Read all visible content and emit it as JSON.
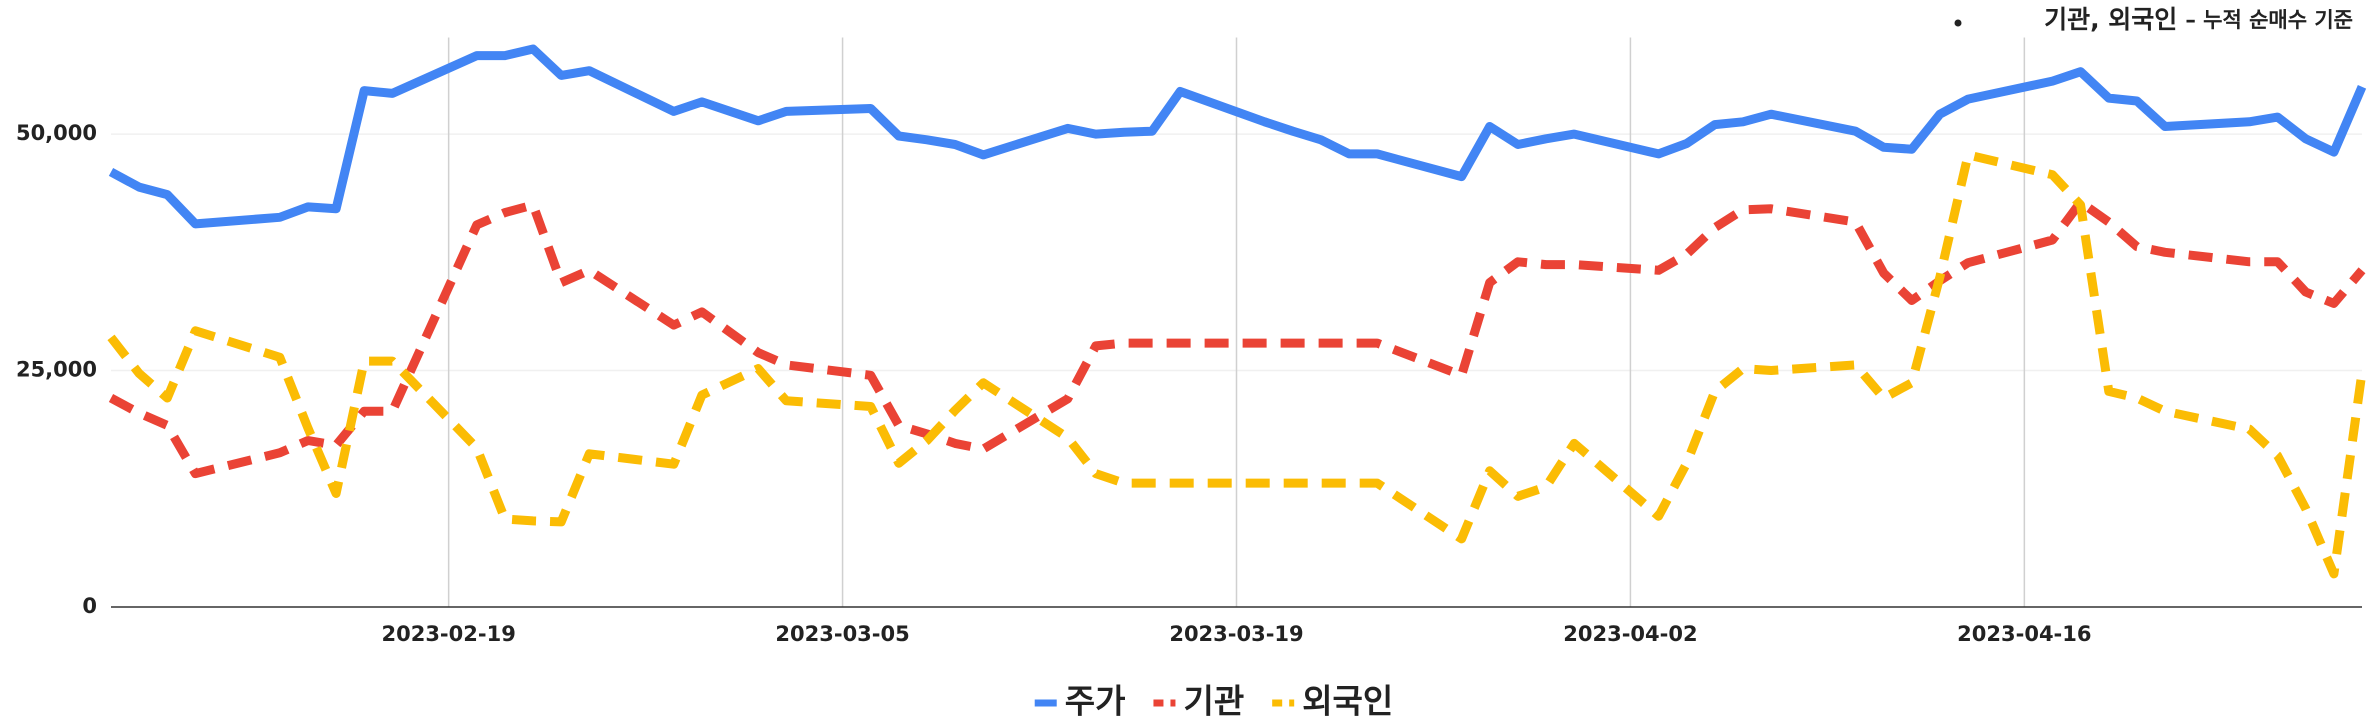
{
  "chart_data": {
    "type": "line",
    "title": "기관, 외국인",
    "subtitle": "– 누적 순매수 기준",
    "x": [
      "2023-02-07",
      "2023-02-08",
      "2023-02-09",
      "2023-02-10",
      "2023-02-13",
      "2023-02-14",
      "2023-02-15",
      "2023-02-16",
      "2023-02-17",
      "2023-02-20",
      "2023-02-21",
      "2023-02-22",
      "2023-02-23",
      "2023-02-24",
      "2023-02-27",
      "2023-02-28",
      "2023-03-02",
      "2023-03-03",
      "2023-03-06",
      "2023-03-07",
      "2023-03-08",
      "2023-03-09",
      "2023-03-10",
      "2023-03-13",
      "2023-03-14",
      "2023-03-15",
      "2023-03-16",
      "2023-03-17",
      "2023-03-20",
      "2023-03-21",
      "2023-03-22",
      "2023-03-23",
      "2023-03-24",
      "2023-03-27",
      "2023-03-28",
      "2023-03-29",
      "2023-03-30",
      "2023-03-31",
      "2023-04-03",
      "2023-04-04",
      "2023-04-05",
      "2023-04-06",
      "2023-04-07",
      "2023-04-10",
      "2023-04-11",
      "2023-04-12",
      "2023-04-13",
      "2023-04-14",
      "2023-04-17",
      "2023-04-18",
      "2023-04-19",
      "2023-04-20",
      "2023-04-21",
      "2023-04-24",
      "2023-04-25",
      "2023-04-26",
      "2023-04-27",
      "2023-04-28"
    ],
    "series": [
      {
        "name": "주가",
        "color": "#4285f4",
        "dash": false,
        "values": [
          46000,
          44400,
          43600,
          40500,
          41200,
          42300,
          42100,
          54600,
          54300,
          58300,
          58300,
          59000,
          56200,
          56700,
          52400,
          53400,
          51400,
          52400,
          52700,
          49800,
          49400,
          48900,
          47800,
          50600,
          50000,
          50200,
          50300,
          54500,
          51300,
          50300,
          49400,
          47900,
          47900,
          45500,
          50800,
          48900,
          49500,
          50000,
          47900,
          49000,
          51000,
          51300,
          52100,
          50300,
          48600,
          48400,
          52100,
          53700,
          55600,
          56600,
          53800,
          53500,
          50800,
          51300,
          51800,
          49500,
          48100,
          55000
        ]
      },
      {
        "name": "기관",
        "color": "#ea4335",
        "dash": true,
        "values": [
          22100,
          20500,
          19200,
          14100,
          16300,
          17600,
          17100,
          20700,
          20700,
          40400,
          41700,
          42500,
          34300,
          35600,
          29800,
          31200,
          26900,
          25600,
          24500,
          19200,
          18300,
          17300,
          16700,
          22000,
          27600,
          27900,
          27900,
          27900,
          27900,
          27900,
          27900,
          27900,
          27900,
          24500,
          34300,
          36500,
          36200,
          36200,
          35600,
          37300,
          40100,
          42000,
          42100,
          40700,
          35300,
          32400,
          34500,
          36400,
          38800,
          42800,
          40700,
          38100,
          37500,
          36500,
          36500,
          33300,
          32100,
          35600
        ]
      },
      {
        "name": "외국인",
        "color": "#fbbc04",
        "dash": true,
        "values": [
          28500,
          24700,
          22100,
          29200,
          26400,
          18900,
          12000,
          26000,
          26000,
          16800,
          9300,
          9100,
          9000,
          16200,
          15100,
          22400,
          25200,
          21800,
          21200,
          15200,
          17600,
          20800,
          23700,
          17900,
          14100,
          13100,
          13100,
          13100,
          13100,
          13100,
          13100,
          13100,
          13100,
          7200,
          14400,
          11700,
          12700,
          17300,
          9600,
          15200,
          22800,
          25200,
          25000,
          25600,
          22100,
          23700,
          34900,
          47800,
          45700,
          42500,
          22800,
          22100,
          20700,
          18800,
          16000,
          10400,
          3500,
          24800
        ]
      }
    ],
    "xlim": [
      "2023-02-07",
      "2023-04-28"
    ],
    "xticks": [
      "2023-02-19",
      "2023-03-05",
      "2023-03-19",
      "2023-04-02",
      "2023-04-16"
    ],
    "ylim": [
      0,
      60000
    ],
    "yticks": [
      0,
      {
        "value": 25000,
        "label": "25,000"
      },
      {
        "value": 50000,
        "label": "50,000"
      }
    ],
    "grid": true,
    "legend": "bottom"
  }
}
